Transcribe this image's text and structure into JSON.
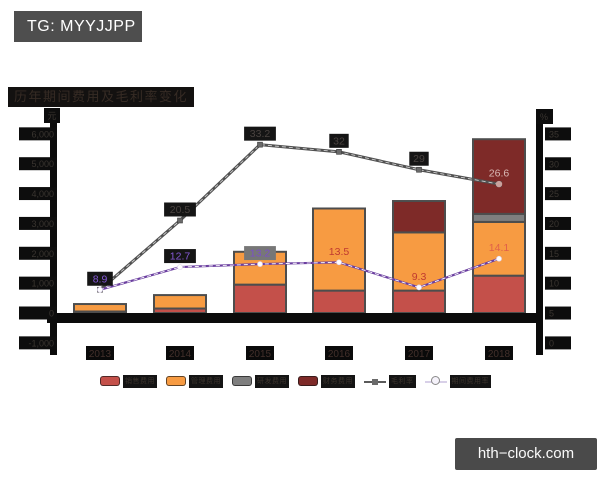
{
  "badge": {
    "label": "TG: MYYJJPP"
  },
  "watermark": {
    "label": "hth−clock.com"
  },
  "chart_data": {
    "type": "bar",
    "subtype": "stacked-bars-with-two-lines",
    "title": "历年期间费用及毛利率变化",
    "categories": [
      "2013",
      "2014",
      "2015",
      "2016",
      "2017",
      "2018"
    ],
    "left_axis": {
      "unit": "元",
      "ticks": [
        "6,000",
        "5,000",
        "4,000",
        "3,000",
        "2,000",
        "1,000",
        "0",
        "-1,000"
      ],
      "max": 6000,
      "min": -1000
    },
    "right_axis": {
      "unit": "%",
      "ticks": [
        "35",
        "30",
        "25",
        "20",
        "15",
        "10",
        "5",
        "0"
      ],
      "max": 35,
      "min": 0
    },
    "bar_series": [
      {
        "name": "销售费用",
        "color": "#c4504a",
        "values": [
          50,
          150,
          950,
          750,
          750,
          1250
        ]
      },
      {
        "name": "管理费用",
        "color": "#f79b42",
        "values": [
          250,
          450,
          1100,
          2750,
          1950,
          1800
        ]
      },
      {
        "name": "研发费用",
        "color": "#7f7f7f",
        "values": [
          0,
          0,
          0,
          0,
          0,
          270
        ]
      },
      {
        "name": "财务费用",
        "color": "#7e2a28",
        "values": [
          0,
          0,
          0,
          0,
          1050,
          2500
        ]
      }
    ],
    "line_series": [
      {
        "name": "毛利率",
        "color": "#515151",
        "marker": "square",
        "values": [
          8.9,
          20.5,
          33.2,
          32,
          29,
          26.6
        ],
        "labels": [
          "",
          "20.5",
          "33.2",
          "32",
          "29",
          "26.6"
        ],
        "label_colors": [
          "",
          "#4a4340",
          "#4a4340",
          "#4a4340",
          "#4a4340",
          "#d9b9b5"
        ],
        "label_chips": [
          "",
          "#151515",
          "#151515",
          "#151515",
          "#151515",
          ""
        ]
      },
      {
        "name": "期间费用率",
        "color": "#6b3fa0",
        "marker": "circle",
        "values": [
          8.9,
          12.7,
          13.2,
          13.5,
          9.3,
          14.1
        ],
        "labels": [
          "8.9",
          "12.7",
          "13.2",
          "13.5",
          "9.3",
          "14.1"
        ],
        "label_colors": [
          "#8559d6",
          "#8559d6",
          "#7a4fc8",
          "#c03a30",
          "#c03a30",
          "#e0604a"
        ],
        "label_chips": [
          "#151515",
          "#151515",
          "#777777",
          "",
          "",
          ""
        ]
      }
    ],
    "legend": [
      {
        "label": "销售费用",
        "swatch": "bar",
        "color": "#c4504a"
      },
      {
        "label": "管理费用",
        "swatch": "bar",
        "color": "#f79b42"
      },
      {
        "label": "研发费用",
        "swatch": "bar",
        "color": "#7f7f7f"
      },
      {
        "label": "财务费用",
        "swatch": "bar",
        "color": "#7e2a28"
      },
      {
        "label": "毛利率",
        "swatch": "line-square",
        "color": "#5a5a5a"
      },
      {
        "label": "期间费用率",
        "swatch": "line-circle",
        "color": "#d8d0e8"
      }
    ]
  }
}
